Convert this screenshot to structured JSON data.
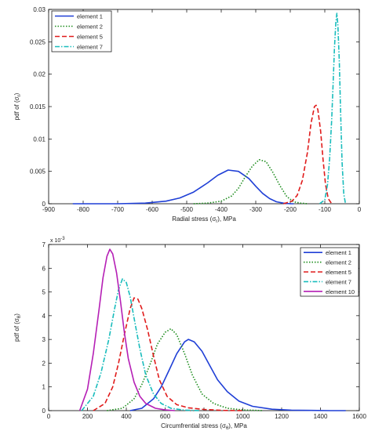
{
  "chart_data": [
    {
      "type": "line",
      "xlabel": "Radial stress (σ",
      "xlabel_sub": "r",
      "xlabel_tail": "), MPa",
      "ylabel": "pdf of (σ",
      "ylabel_sub": "r",
      "ylabel_tail": ")",
      "xlim": [
        -900,
        0
      ],
      "ylim": [
        0,
        0.03
      ],
      "xticks": [
        -900,
        -800,
        -700,
        -600,
        -500,
        -400,
        -300,
        -200,
        -100,
        0
      ],
      "yticks": [
        0,
        0.005,
        0.01,
        0.015,
        0.02,
        0.025,
        0.03
      ],
      "ytick_labels": [
        "0",
        "0.005",
        "0.01",
        "0.015",
        "0.02",
        "0.025",
        "0.03"
      ],
      "legend_position": "top-left",
      "series": [
        {
          "name": "element 1",
          "color": "#1f3fd6",
          "dash": "solid",
          "x": [
            -830,
            -700,
            -620,
            -560,
            -520,
            -480,
            -440,
            -410,
            -380,
            -350,
            -320,
            -300,
            -280,
            -260,
            -240,
            -220,
            -200,
            -190
          ],
          "y": [
            0,
            0,
            0.0001,
            0.0004,
            0.0009,
            0.0018,
            0.0032,
            0.0044,
            0.0052,
            0.005,
            0.0039,
            0.0027,
            0.0016,
            0.0008,
            0.0003,
            0.0001,
            0,
            0
          ]
        },
        {
          "name": "element 2",
          "color": "#1c8c1c",
          "dash": "dot",
          "x": [
            -480,
            -440,
            -400,
            -370,
            -350,
            -330,
            -310,
            -290,
            -270,
            -250,
            -230,
            -210,
            -190,
            -170,
            -150
          ],
          "y": [
            0,
            0.0001,
            0.0004,
            0.0012,
            0.0024,
            0.0042,
            0.0058,
            0.0068,
            0.0065,
            0.0048,
            0.0028,
            0.0011,
            0.0003,
            0.0001,
            0
          ]
        },
        {
          "name": "element 5",
          "color": "#e01b1b",
          "dash": "dash",
          "x": [
            -220,
            -195,
            -180,
            -165,
            -150,
            -140,
            -130,
            -125,
            -120,
            -112,
            -105,
            -98,
            -90,
            -80
          ],
          "y": [
            0,
            0.0004,
            0.0013,
            0.0036,
            0.008,
            0.0124,
            0.015,
            0.0152,
            0.0145,
            0.0112,
            0.0068,
            0.003,
            0.0008,
            0
          ]
        },
        {
          "name": "element 7",
          "color": "#18bcbc",
          "dash": "dashdot",
          "x": [
            -115,
            -100,
            -92,
            -86,
            -80,
            -76,
            -72,
            -68,
            -65,
            -62,
            -58,
            -54,
            -50,
            -45,
            -40
          ],
          "y": [
            0,
            0.0006,
            0.003,
            0.007,
            0.013,
            0.0185,
            0.024,
            0.028,
            0.0294,
            0.0275,
            0.022,
            0.014,
            0.0065,
            0.0015,
            0
          ]
        }
      ]
    },
    {
      "type": "line",
      "xlabel": "Circumfrential stress (σ",
      "xlabel_sub": "θ",
      "xlabel_tail": "), MPa",
      "ylabel": "pdf of (σ",
      "ylabel_sub": "θ",
      "ylabel_tail": ")",
      "y_multiplier": "x 10",
      "y_multiplier_exp": "-3",
      "xlim": [
        0,
        1600
      ],
      "ylim": [
        0,
        7
      ],
      "xticks": [
        0,
        200,
        400,
        600,
        800,
        1000,
        1200,
        1400,
        1600
      ],
      "yticks": [
        0,
        1,
        2,
        3,
        4,
        5,
        6,
        7
      ],
      "ytick_labels": [
        "0",
        "1",
        "2",
        "3",
        "4",
        "5",
        "6",
        "7"
      ],
      "legend_position": "top-right",
      "series": [
        {
          "name": "element 1",
          "color": "#1f3fd6",
          "dash": "solid",
          "x": [
            420,
            480,
            540,
            580,
            620,
            660,
            700,
            720,
            750,
            790,
            830,
            870,
            920,
            980,
            1050,
            1150,
            1250,
            1350,
            1450,
            1530
          ],
          "y": [
            0,
            0.1,
            0.5,
            1.0,
            1.7,
            2.4,
            2.9,
            3.0,
            2.9,
            2.5,
            1.9,
            1.3,
            0.8,
            0.4,
            0.18,
            0.06,
            0.02,
            0.01,
            0,
            0
          ]
        },
        {
          "name": "element 2",
          "color": "#1c8c1c",
          "dash": "dot",
          "x": [
            300,
            380,
            440,
            480,
            520,
            560,
            600,
            630,
            660,
            700,
            740,
            790,
            850,
            920,
            1000,
            1100
          ],
          "y": [
            0,
            0.1,
            0.5,
            1.1,
            1.9,
            2.8,
            3.3,
            3.45,
            3.2,
            2.4,
            1.5,
            0.7,
            0.3,
            0.1,
            0.03,
            0
          ]
        },
        {
          "name": "element 5",
          "color": "#e01b1b",
          "dash": "dash",
          "x": [
            230,
            290,
            330,
            360,
            390,
            420,
            440,
            460,
            480,
            510,
            540,
            570,
            610,
            660,
            720,
            800,
            900,
            1000
          ],
          "y": [
            0,
            0.3,
            1.0,
            2.0,
            3.2,
            4.3,
            4.75,
            4.7,
            4.3,
            3.4,
            2.3,
            1.3,
            0.6,
            0.25,
            0.12,
            0.05,
            0.01,
            0
          ]
        },
        {
          "name": "element 7",
          "color": "#18bcbc",
          "dash": "dashdot",
          "x": [
            170,
            230,
            270,
            310,
            340,
            360,
            380,
            400,
            420,
            440,
            470,
            500,
            540,
            580,
            630,
            700,
            780
          ],
          "y": [
            0,
            0.6,
            1.6,
            3.0,
            4.3,
            5.1,
            5.55,
            5.4,
            4.8,
            3.9,
            2.6,
            1.5,
            0.7,
            0.3,
            0.1,
            0.02,
            0
          ]
        },
        {
          "name": "element 10",
          "color": "#b51fb5",
          "dash": "solid",
          "x": [
            160,
            200,
            230,
            260,
            280,
            300,
            315,
            330,
            350,
            370,
            390,
            410,
            440,
            470,
            500,
            550,
            600,
            650
          ],
          "y": [
            0,
            0.9,
            2.4,
            4.3,
            5.6,
            6.5,
            6.8,
            6.6,
            5.8,
            4.6,
            3.3,
            2.2,
            1.2,
            0.6,
            0.3,
            0.1,
            0.03,
            0
          ]
        }
      ]
    }
  ]
}
